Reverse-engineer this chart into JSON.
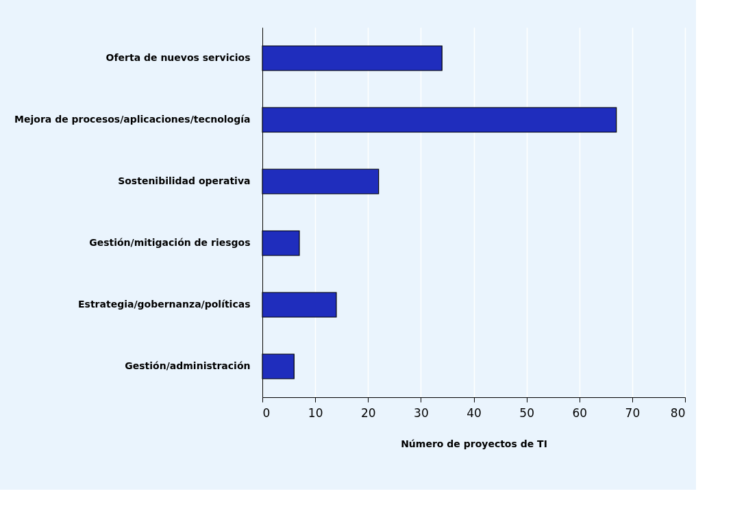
{
  "chart_data": {
    "type": "bar",
    "orientation": "horizontal",
    "xlabel": "Número de proyectos de TI",
    "categories": [
      "Oferta de nuevos servicios",
      "Mejora de procesos/aplicaciones/tecnología",
      "Sostenibilidad operativa",
      "Gestión/mitigación de riesgos",
      "Estrategia/gobernanza/políticas",
      "Gestión/administración"
    ],
    "values": [
      34,
      67,
      22,
      7,
      14,
      6
    ],
    "color": "#1f2dbd",
    "xlim": [
      0,
      80
    ],
    "xticks": [
      0,
      10,
      20,
      30,
      40,
      50,
      60,
      70,
      80
    ],
    "grid": "x"
  }
}
